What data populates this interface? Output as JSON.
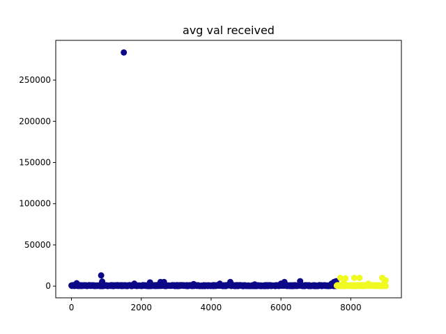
{
  "chart_data": {
    "type": "scatter",
    "title": "avg val received",
    "xlabel": "",
    "ylabel": "",
    "xlim": [
      -450,
      9450
    ],
    "ylim": [
      -14200,
      298200
    ],
    "xticks": [
      0,
      2000,
      4000,
      6000,
      8000
    ],
    "yticks": [
      0,
      50000,
      100000,
      150000,
      200000,
      250000
    ],
    "xtick_labels": [
      "0",
      "2000",
      "4000",
      "6000",
      "8000"
    ],
    "ytick_labels": [
      "0",
      "50000",
      "100000",
      "150000",
      "200000",
      "250000"
    ],
    "grid": false,
    "legend": false,
    "series": [
      {
        "color": "#0d0887",
        "x_range": [
          0,
          7600
        ],
        "baseline_band": [
          0,
          1200
        ],
        "points": [
          [
            1500,
            283500
          ],
          [
            850,
            13000
          ],
          [
            880,
            5500
          ],
          [
            150,
            3500
          ],
          [
            1800,
            3000
          ],
          [
            2250,
            4500
          ],
          [
            2550,
            5000
          ],
          [
            2650,
            5000
          ],
          [
            3500,
            2500
          ],
          [
            4250,
            3000
          ],
          [
            4550,
            5000
          ],
          [
            5250,
            2000
          ],
          [
            6000,
            3000
          ],
          [
            6100,
            5000
          ],
          [
            6550,
            6000
          ],
          [
            7450,
            3000
          ],
          [
            7520,
            5000
          ],
          [
            7580,
            6000
          ],
          [
            10,
            300
          ],
          [
            300,
            800
          ]
        ]
      },
      {
        "color": "#f0f921",
        "x_range": [
          7600,
          9000
        ],
        "baseline_band": [
          0,
          1200
        ],
        "points": [
          [
            7700,
            10000
          ],
          [
            7850,
            9500
          ],
          [
            8100,
            10000
          ],
          [
            8250,
            10000
          ],
          [
            8900,
            10000
          ],
          [
            9000,
            7000
          ],
          [
            7800,
            4000
          ],
          [
            8500,
            3000
          ],
          [
            8950,
            3000
          ]
        ]
      }
    ]
  }
}
